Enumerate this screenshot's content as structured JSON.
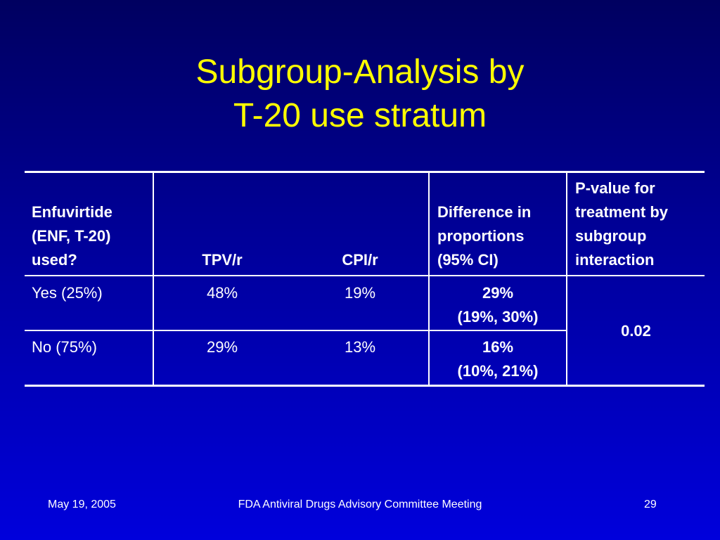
{
  "title": {
    "lines": [
      "Subgroup-Analysis by",
      "T-20 use stratum"
    ]
  },
  "table": {
    "header": [
      [
        "Enfuvirtide",
        "(ENF, T-20)",
        "used?"
      ],
      [
        "TPV/r"
      ],
      [
        "CPI/r"
      ],
      [
        "Difference in",
        "proportions",
        "(95% CI)"
      ],
      [
        "P-value for",
        "treatment by",
        "subgroup",
        "interaction"
      ]
    ],
    "rows": [
      [
        "Yes (25%)",
        "48%",
        "19%",
        [
          "29%",
          "(19%, 30%)"
        ]
      ],
      [
        "No (75%)",
        "29%",
        "13%",
        [
          "16%",
          "(10%, 21%)"
        ]
      ]
    ],
    "p_value": "0.02"
  },
  "footer": {
    "date": "May 19, 2005",
    "meeting": "FDA Antiviral Drugs Advisory Committee Meeting",
    "page": "29"
  }
}
